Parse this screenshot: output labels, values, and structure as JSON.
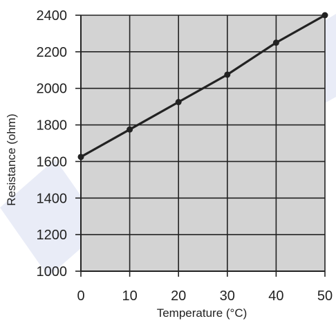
{
  "chart_data": {
    "type": "line",
    "title": "",
    "xlabel": "Temperature (°C)",
    "ylabel": "Resistance (ohm)",
    "xlim": [
      0,
      50
    ],
    "ylim": [
      1000,
      2400
    ],
    "xticks": [
      0,
      10,
      20,
      30,
      40,
      50
    ],
    "yticks": [
      1000,
      1200,
      1400,
      1600,
      1800,
      2000,
      2200,
      2400
    ],
    "x": [
      0,
      10,
      20,
      30,
      40,
      50
    ],
    "series": [
      {
        "values": [
          1625,
          1775,
          1925,
          2075,
          2250,
          2400
        ]
      }
    ],
    "grid": true,
    "legend": "none"
  },
  "colors": {
    "plot_background": "#d3d3d3",
    "grid": "#222222",
    "line": "#222222",
    "text": "#222222",
    "watermark": "#e9ecf7"
  }
}
